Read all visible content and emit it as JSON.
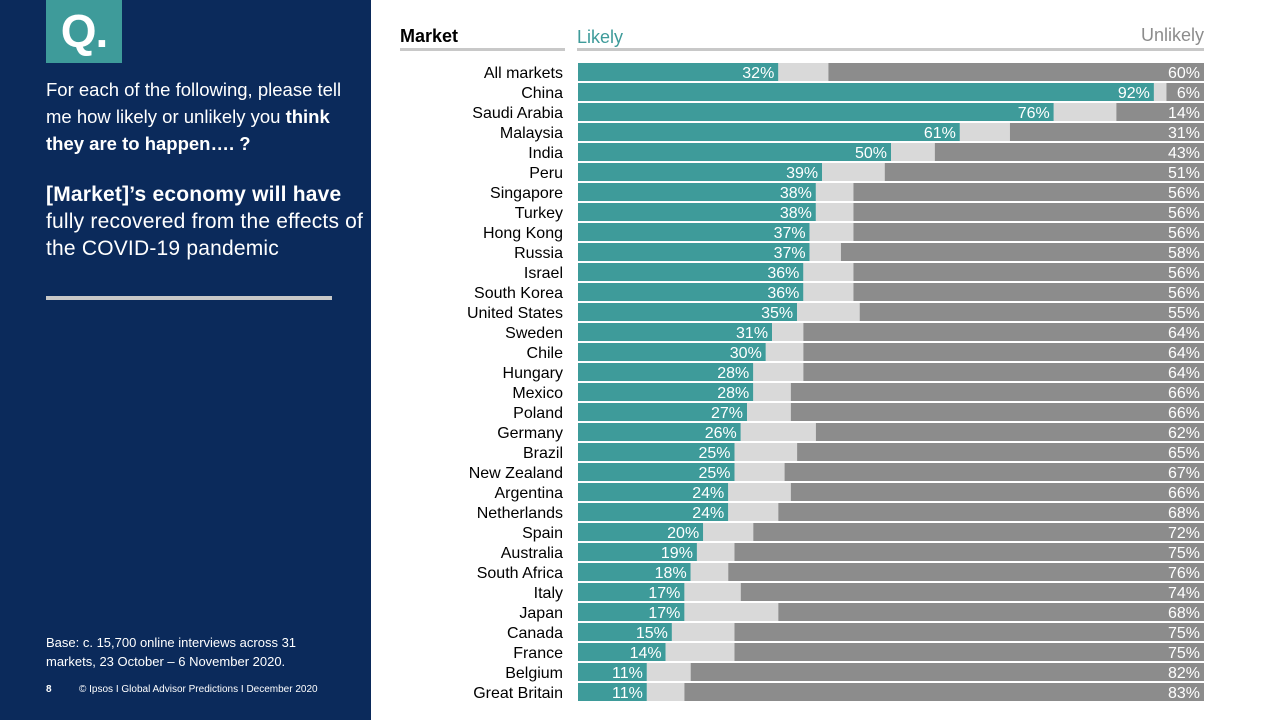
{
  "sidebar": {
    "q_badge": "Q.",
    "question_lead": "For each of the following, please tell me how likely or unlikely you",
    "question_bold": "think they are to happen…. ?",
    "statement_bold": "[Market]’s economy will have",
    "statement_rest": "fully recovered from the effects of the COVID-19 pandemic",
    "base_line1": "Base: c. 15,700 online interviews across 31",
    "base_line2": "markets,  23 October – 6 November 2020.",
    "page_number": "8",
    "footer": "© Ipsos I Global Advisor Predictions I December 2020"
  },
  "colors": {
    "sidebar": "#0b2a5b",
    "likely": "#3e9b9a",
    "middle": "#d9d9d9",
    "unlikely": "#8c8c8c"
  },
  "chart_data": {
    "type": "bar",
    "orientation": "horizontal",
    "stacked": true,
    "headers": {
      "market": "Market",
      "likely": "Likely",
      "unlikely": "Unlikely"
    },
    "categories": [
      "All markets",
      "China",
      "Saudi Arabia",
      "Malaysia",
      "India",
      "Peru",
      "Singapore",
      "Turkey",
      "Hong Kong",
      "Russia",
      "Israel",
      "South Korea",
      "United States",
      "Sweden",
      "Chile",
      "Hungary",
      "Mexico",
      "Poland",
      "Germany",
      "Brazil",
      "New Zealand",
      "Argentina",
      "Netherlands",
      "Spain",
      "Australia",
      "South Africa",
      "Italy",
      "Japan",
      "Canada",
      "France",
      "Belgium",
      "Great Britain"
    ],
    "series": [
      {
        "name": "Likely",
        "values": [
          32,
          92,
          76,
          61,
          50,
          39,
          38,
          38,
          37,
          37,
          36,
          36,
          35,
          31,
          30,
          28,
          28,
          27,
          26,
          25,
          25,
          24,
          24,
          20,
          19,
          18,
          17,
          17,
          15,
          14,
          11,
          11
        ]
      },
      {
        "values": [
          8,
          2,
          10,
          8,
          7,
          10,
          6,
          6,
          7,
          5,
          8,
          8,
          10,
          5,
          6,
          8,
          6,
          7,
          12,
          10,
          8,
          10,
          8,
          8,
          6,
          6,
          9,
          15,
          10,
          11,
          7,
          6
        ]
      },
      {
        "name": "Unlikely",
        "values": [
          60,
          6,
          14,
          31,
          43,
          51,
          56,
          56,
          56,
          58,
          56,
          56,
          55,
          64,
          64,
          64,
          66,
          66,
          62,
          65,
          67,
          66,
          68,
          72,
          75,
          76,
          74,
          68,
          75,
          75,
          82,
          83
        ]
      }
    ],
    "xlim": [
      0,
      100
    ]
  }
}
